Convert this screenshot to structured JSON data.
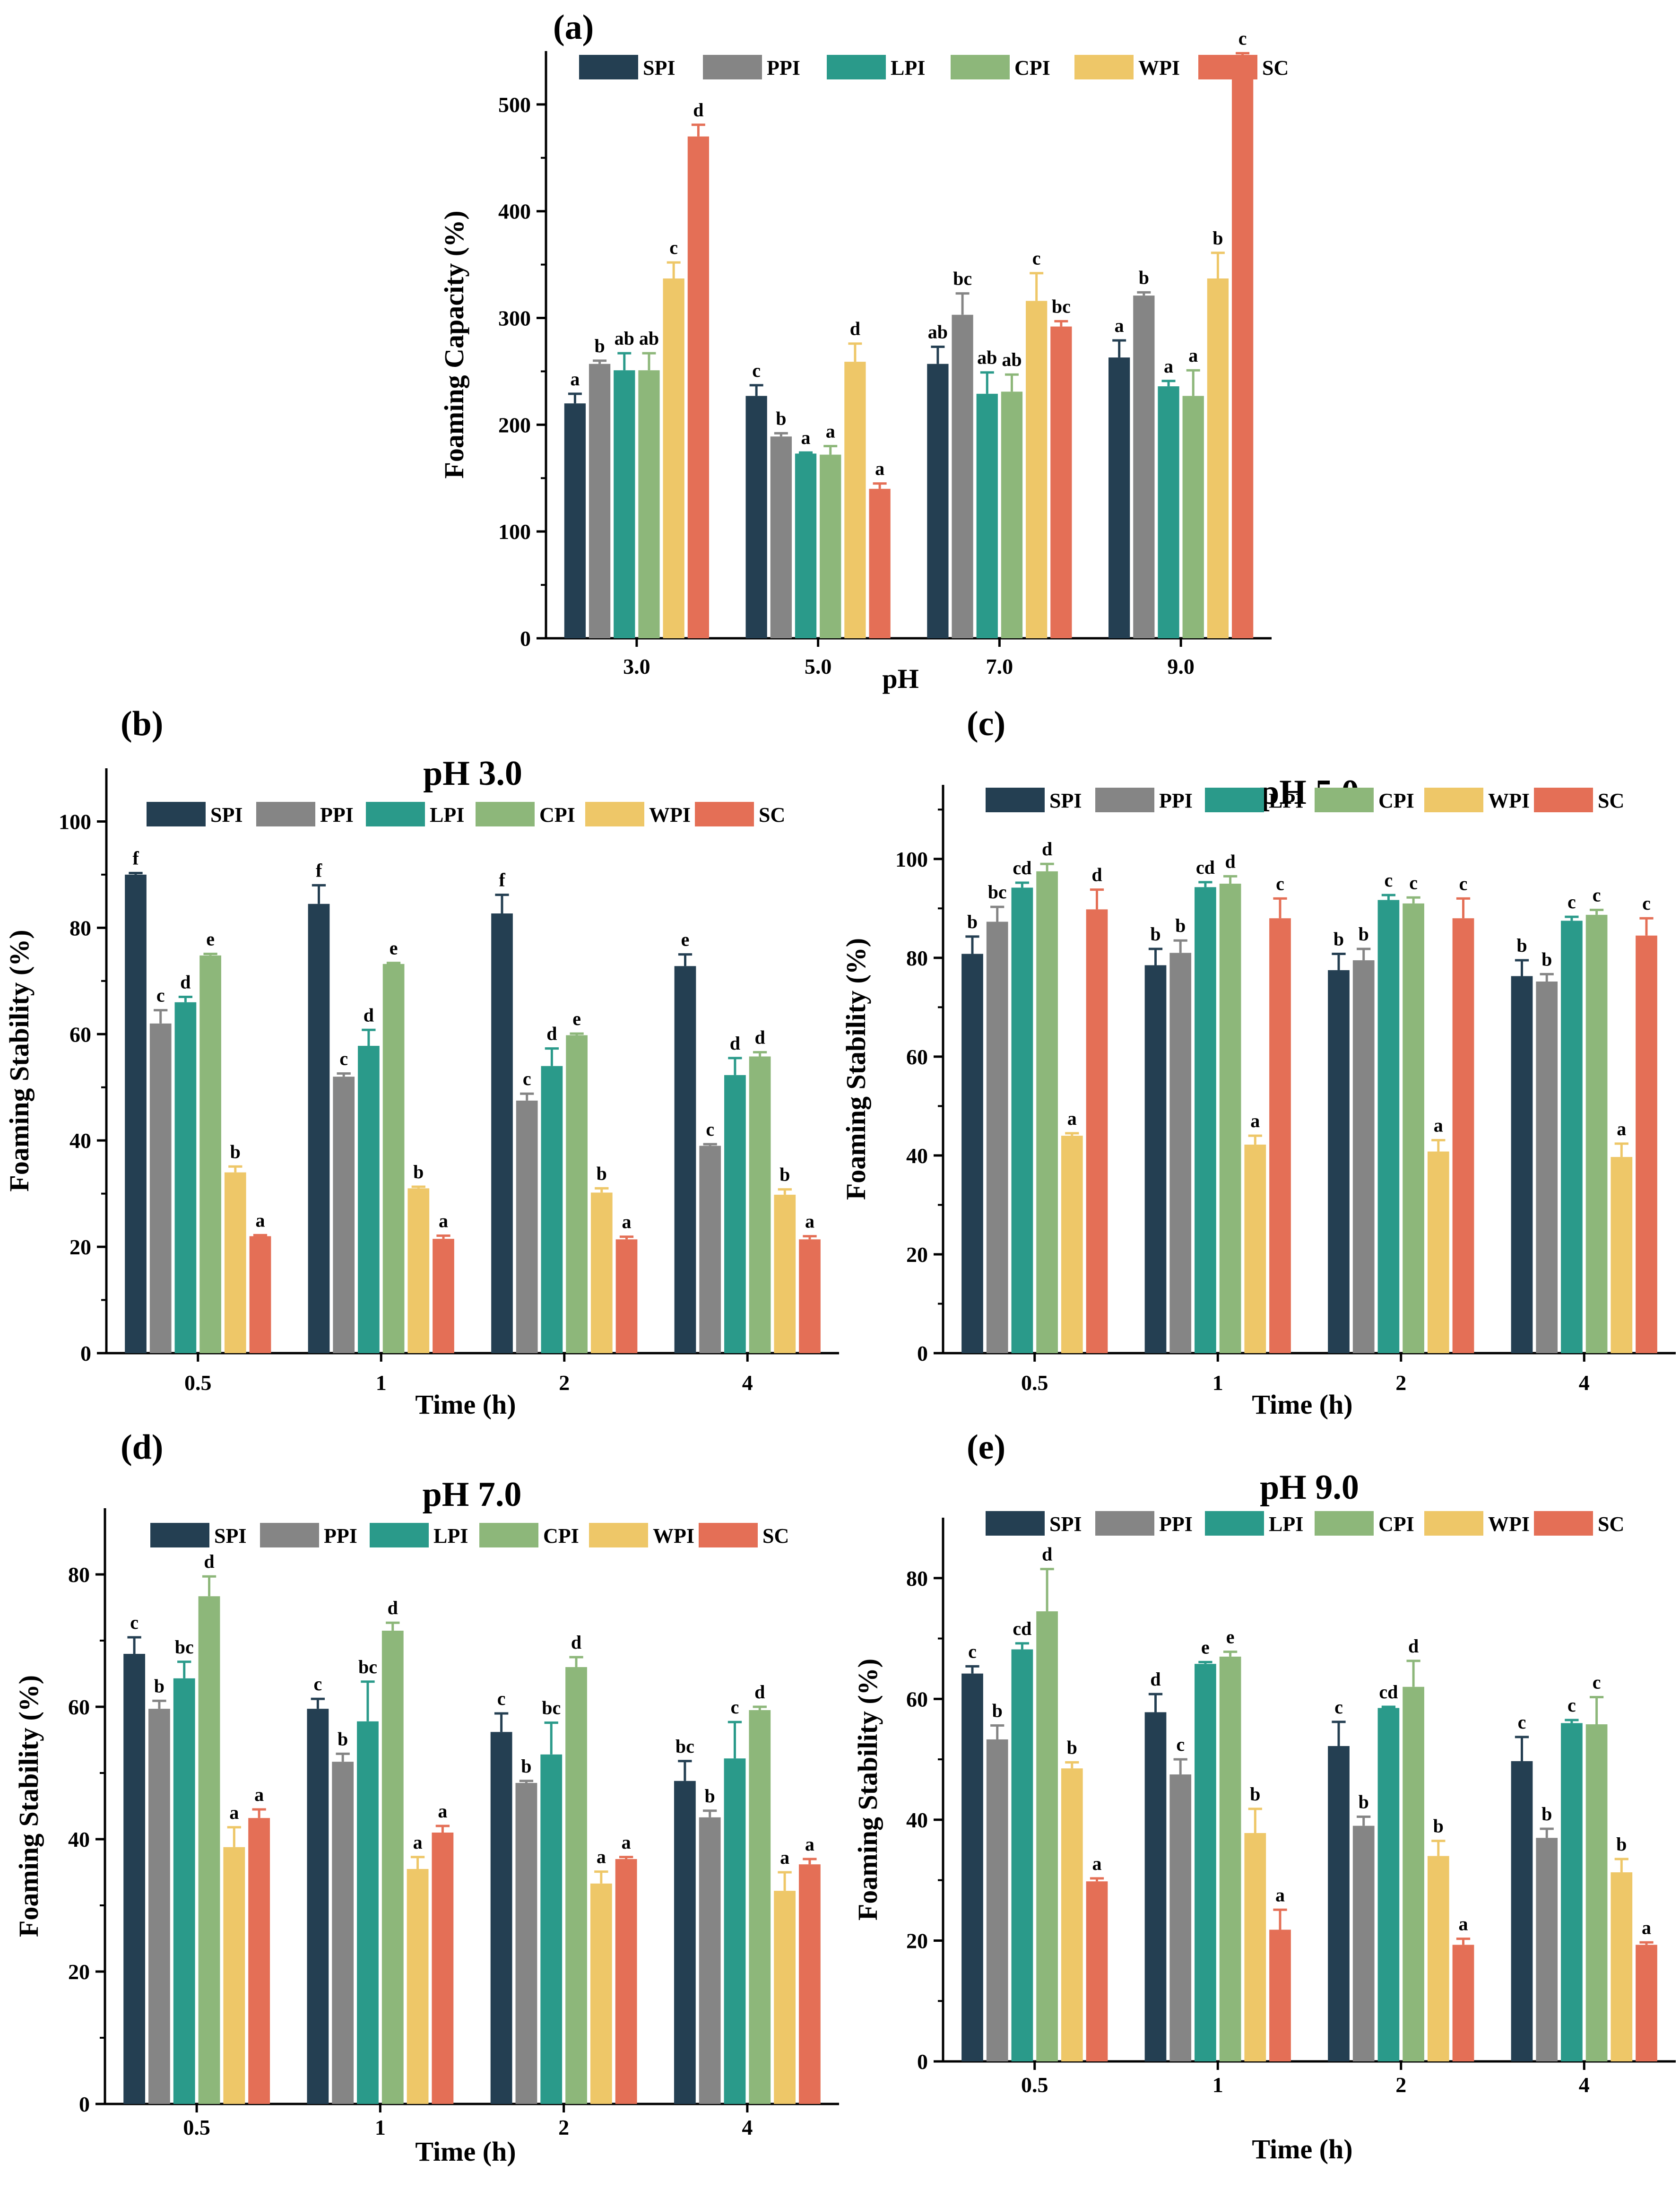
{
  "colors": {
    "SPI": "#243f52",
    "PPI": "#858585",
    "LPI": "#2a9a8a",
    "CPI": "#8db77a",
    "WPI": "#eec768",
    "SC": "#e46f56"
  },
  "chart_data": [
    {
      "id": "a",
      "panel_label": "(a)",
      "type": "bar",
      "title": "",
      "xlabel": "pH",
      "ylabel": "Foaming Capacity (%)",
      "ylim": [
        0,
        550
      ],
      "yticks": [
        0,
        100,
        200,
        300,
        400,
        500
      ],
      "categories": [
        "3.0",
        "5.0",
        "7.0",
        "9.0"
      ],
      "series": [
        {
          "name": "SPI",
          "values": [
            220,
            227,
            257,
            263
          ],
          "errors": [
            9,
            10,
            16,
            16
          ],
          "letters": [
            "a",
            "c",
            "ab",
            "a"
          ]
        },
        {
          "name": "PPI",
          "values": [
            257,
            189,
            303,
            321
          ],
          "errors": [
            3,
            3,
            20,
            3
          ],
          "letters": [
            "b",
            "b",
            "bc",
            "b"
          ]
        },
        {
          "name": "LPI",
          "values": [
            251,
            173,
            229,
            236
          ],
          "errors": [
            16,
            1,
            20,
            5
          ],
          "letters": [
            "ab",
            "a",
            "ab",
            "a"
          ]
        },
        {
          "name": "CPI",
          "values": [
            251,
            172,
            231,
            227
          ],
          "errors": [
            16,
            8,
            16,
            24
          ],
          "letters": [
            "ab",
            "a",
            "ab",
            "a"
          ]
        },
        {
          "name": "WPI",
          "values": [
            337,
            259,
            316,
            337
          ],
          "errors": [
            15,
            17,
            26,
            24
          ],
          "letters": [
            "c",
            "d",
            "c",
            "b"
          ]
        },
        {
          "name": "SC",
          "values": [
            470,
            140,
            292,
            533
          ],
          "errors": [
            11,
            5,
            5,
            15
          ],
          "letters": [
            "d",
            "a",
            "bc",
            "c"
          ]
        }
      ]
    },
    {
      "id": "b",
      "panel_label": "(b)",
      "type": "bar",
      "title": "pH 3.0",
      "xlabel": "Time (h)",
      "ylabel": "Foaming Stability (%)",
      "ylim": [
        0,
        110
      ],
      "yticks": [
        0,
        20,
        40,
        60,
        80,
        100
      ],
      "categories": [
        "0.5",
        "1",
        "2",
        "4"
      ],
      "series": [
        {
          "name": "SPI",
          "values": [
            90,
            84.5,
            82.7,
            72.8
          ],
          "errors": [
            0.3,
            3.5,
            3.5,
            2.2
          ],
          "letters": [
            "f",
            "f",
            "f",
            "e"
          ]
        },
        {
          "name": "PPI",
          "values": [
            62,
            52,
            47.5,
            39
          ],
          "errors": [
            2.5,
            0.6,
            1.3,
            0.3
          ],
          "letters": [
            "c",
            "c",
            "c",
            "c"
          ]
        },
        {
          "name": "LPI",
          "values": [
            66,
            57.8,
            54,
            52.3
          ],
          "errors": [
            1,
            3,
            3.3,
            3.2
          ],
          "letters": [
            "d",
            "d",
            "d",
            "d"
          ]
        },
        {
          "name": "CPI",
          "values": [
            74.8,
            73.2,
            59.8,
            55.8
          ],
          "errors": [
            0.3,
            0.2,
            0.3,
            0.8
          ],
          "letters": [
            "e",
            "e",
            "e",
            "d"
          ]
        },
        {
          "name": "WPI",
          "values": [
            34,
            31,
            30.2,
            29.8
          ],
          "errors": [
            1.1,
            0.3,
            0.8,
            1
          ],
          "letters": [
            "b",
            "b",
            "b",
            "b"
          ]
        },
        {
          "name": "SC",
          "values": [
            22,
            21.5,
            21.4,
            21.4
          ],
          "errors": [
            0.2,
            0.6,
            0.5,
            0.6
          ],
          "letters": [
            "a",
            "a",
            "a",
            "a"
          ]
        }
      ]
    },
    {
      "id": "c",
      "panel_label": "(c)",
      "type": "bar",
      "title": "pH 5.0",
      "xlabel": "Time (h)",
      "ylabel": "Foaming Stability (%)",
      "ylim": [
        0,
        115
      ],
      "yticks": [
        0,
        20,
        40,
        60,
        80,
        100
      ],
      "categories": [
        "0.5",
        "1",
        "2",
        "4"
      ],
      "series": [
        {
          "name": "SPI",
          "values": [
            80.8,
            78.5,
            77.5,
            76.3
          ],
          "errors": [
            3.5,
            3.3,
            3.3,
            3.2
          ],
          "letters": [
            "b",
            "b",
            "b",
            "b"
          ]
        },
        {
          "name": "PPI",
          "values": [
            87.3,
            81,
            79.5,
            75.2
          ],
          "errors": [
            3,
            2.5,
            2.3,
            1.5
          ],
          "letters": [
            "bc",
            "b",
            "b",
            "b"
          ]
        },
        {
          "name": "LPI",
          "values": [
            94.2,
            94.3,
            91.7,
            87.5
          ],
          "errors": [
            1,
            1,
            1,
            0.8
          ],
          "letters": [
            "cd",
            "cd",
            "c",
            "c"
          ]
        },
        {
          "name": "CPI",
          "values": [
            97.5,
            95,
            91,
            88.7
          ],
          "errors": [
            1.5,
            1.5,
            1.2,
            1
          ],
          "letters": [
            "d",
            "d",
            "c",
            "c"
          ]
        },
        {
          "name": "WPI",
          "values": [
            44,
            42.2,
            40.8,
            39.7
          ],
          "errors": [
            0.5,
            1.8,
            2.3,
            2.7
          ],
          "letters": [
            "a",
            "a",
            "a",
            "a"
          ]
        },
        {
          "name": "SC",
          "values": [
            89.8,
            88,
            88,
            84.5
          ],
          "errors": [
            4,
            4,
            4,
            3.5
          ],
          "letters": [
            "d",
            "c",
            "c",
            "c"
          ]
        }
      ]
    },
    {
      "id": "d",
      "panel_label": "(d)",
      "type": "bar",
      "title": "pH 7.0",
      "xlabel": "Time (h)",
      "ylabel": "Foaming Stability (%)",
      "ylim": [
        0,
        90
      ],
      "yticks": [
        0,
        20,
        40,
        60,
        80
      ],
      "categories": [
        "0.5",
        "1",
        "2",
        "4"
      ],
      "series": [
        {
          "name": "SPI",
          "values": [
            68,
            59.7,
            56.2,
            48.8
          ],
          "errors": [
            2.5,
            1.5,
            2.8,
            3
          ],
          "letters": [
            "c",
            "c",
            "c",
            "bc"
          ]
        },
        {
          "name": "PPI",
          "values": [
            59.7,
            51.7,
            48.5,
            43.3
          ],
          "errors": [
            1.2,
            1.2,
            0.3,
            1
          ],
          "letters": [
            "b",
            "b",
            "b",
            "b"
          ]
        },
        {
          "name": "LPI",
          "values": [
            64.3,
            57.8,
            52.8,
            52.2
          ],
          "errors": [
            2.5,
            6,
            4.8,
            5.5
          ],
          "letters": [
            "bc",
            "bc",
            "bc",
            "c"
          ]
        },
        {
          "name": "CPI",
          "values": [
            76.7,
            71.5,
            66,
            59.5
          ],
          "errors": [
            3,
            1.2,
            1.5,
            0.5
          ],
          "letters": [
            "d",
            "d",
            "d",
            "d"
          ]
        },
        {
          "name": "WPI",
          "values": [
            38.8,
            35.5,
            33.3,
            32.2
          ],
          "errors": [
            3,
            1.8,
            1.8,
            2.8
          ],
          "letters": [
            "a",
            "a",
            "a",
            "a"
          ]
        },
        {
          "name": "SC",
          "values": [
            43.2,
            41,
            37,
            36.2
          ],
          "errors": [
            1.3,
            1,
            0.3,
            0.8
          ],
          "letters": [
            "a",
            "a",
            "a",
            "a"
          ]
        }
      ]
    },
    {
      "id": "e",
      "panel_label": "(e)",
      "type": "bar",
      "title": "pH 9.0",
      "xlabel": "Time (h)",
      "ylabel": "Foaming Stability (%)",
      "ylim": [
        0,
        90
      ],
      "yticks": [
        0,
        20,
        40,
        60,
        80
      ],
      "categories": [
        "0.5",
        "1",
        "2",
        "4"
      ],
      "series": [
        {
          "name": "SPI",
          "values": [
            64.2,
            57.8,
            52.2,
            49.7
          ],
          "errors": [
            1.2,
            3,
            4,
            4
          ],
          "letters": [
            "c",
            "d",
            "c",
            "c"
          ]
        },
        {
          "name": "PPI",
          "values": [
            53.3,
            47.5,
            39,
            37
          ],
          "errors": [
            2.3,
            2.5,
            1.5,
            1.5
          ],
          "letters": [
            "b",
            "c",
            "b",
            "b"
          ]
        },
        {
          "name": "LPI",
          "values": [
            68.2,
            65.8,
            58.5,
            56
          ],
          "errors": [
            1,
            0.3,
            0.2,
            0.5
          ],
          "letters": [
            "cd",
            "e",
            "cd",
            "c"
          ]
        },
        {
          "name": "CPI",
          "values": [
            74.5,
            67,
            62,
            55.8
          ],
          "errors": [
            7,
            0.8,
            4.3,
            4.5
          ],
          "letters": [
            "d",
            "e",
            "d",
            "c"
          ]
        },
        {
          "name": "WPI",
          "values": [
            48.5,
            37.8,
            34,
            31.3
          ],
          "errors": [
            1,
            4,
            2.5,
            2.2
          ],
          "letters": [
            "b",
            "b",
            "b",
            "b"
          ]
        },
        {
          "name": "SC",
          "values": [
            29.8,
            21.8,
            19.3,
            19.3
          ],
          "errors": [
            0.5,
            3.3,
            1,
            0.4
          ],
          "letters": [
            "a",
            "a",
            "a",
            "a"
          ]
        }
      ]
    }
  ]
}
